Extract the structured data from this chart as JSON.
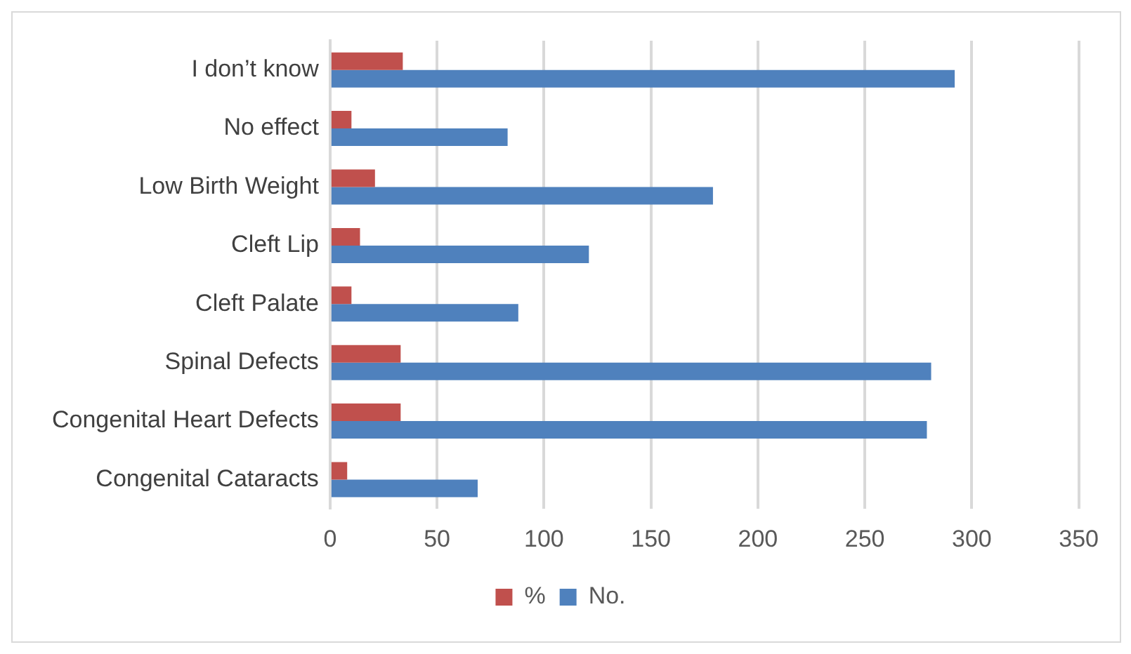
{
  "chart_data": {
    "type": "bar",
    "orientation": "horizontal",
    "categories": [
      "I don’t know",
      "No effect",
      "Low Birth Weight",
      "Cleft Lip",
      "Cleft Palate",
      "Spinal Defects",
      "Congenital Heart Defects",
      "Congenital Cataracts"
    ],
    "series": [
      {
        "name": "%",
        "color": "#c0504d",
        "values": [
          34,
          10,
          21,
          14,
          10,
          33,
          33,
          8
        ]
      },
      {
        "name": "No.",
        "color": "#4f81bd",
        "values": [
          292,
          83,
          179,
          121,
          88,
          281,
          279,
          69
        ]
      }
    ],
    "xlim": [
      0,
      350
    ],
    "xticks": [
      0,
      50,
      100,
      150,
      200,
      250,
      300,
      350
    ],
    "grid": "x",
    "legend": "bottom"
  }
}
